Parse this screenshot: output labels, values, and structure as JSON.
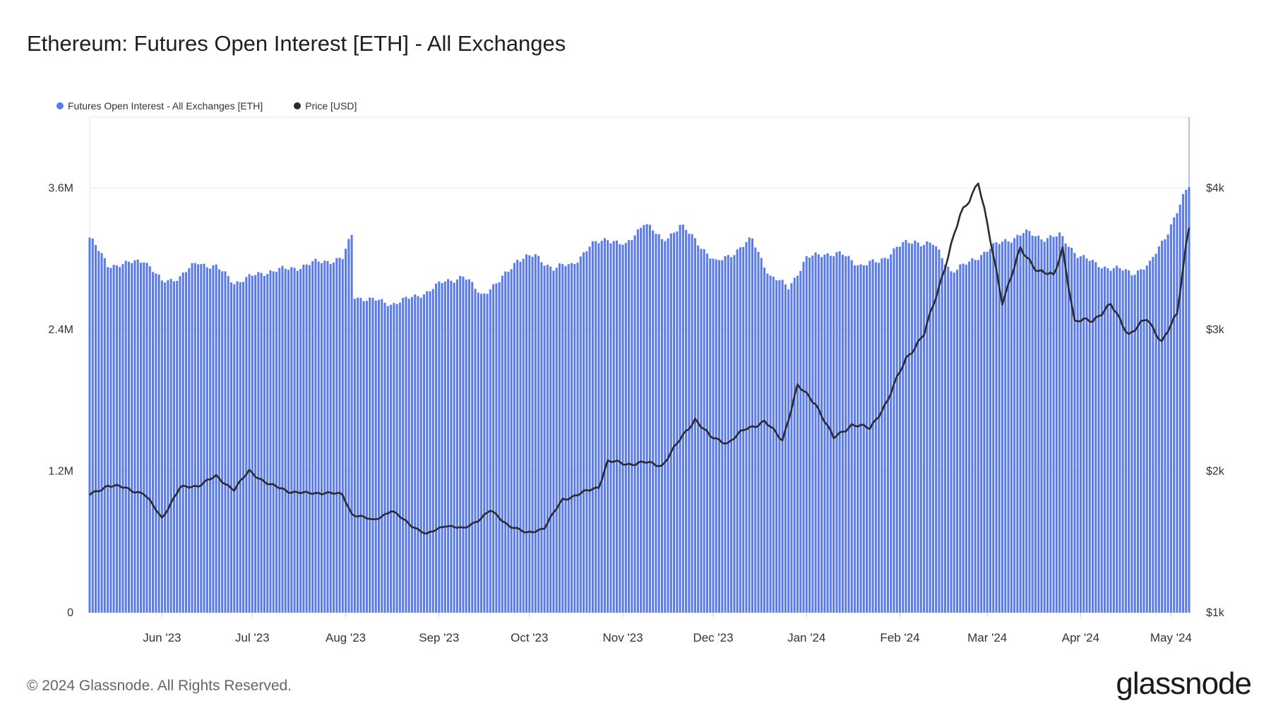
{
  "title": "Ethereum: Futures Open Interest [ETH] - All Exchanges",
  "legend": [
    {
      "label": "Futures Open Interest - All Exchanges [ETH]",
      "color": "#5b7be8"
    },
    {
      "label": "Price [USD]",
      "color": "#2b2b2b"
    }
  ],
  "footer": "© 2024 Glassnode. All Rights Reserved.",
  "logo": "glassnode",
  "chart_data": {
    "type": "bar",
    "x_range": [
      "2023-05-22",
      "2024-05-21"
    ],
    "x_ticks": [
      "Jun '23",
      "Jul '23",
      "Aug '23",
      "Sep '23",
      "Oct '23",
      "Nov '23",
      "Dec '23",
      "Jan '24",
      "Feb '24",
      "Mar '24",
      "Apr '24",
      "May '24"
    ],
    "y_left": {
      "ticks": [
        "0",
        "1.2M",
        "2.4M",
        "3.6M"
      ],
      "values": [
        0,
        1200000,
        2400000,
        3600000
      ],
      "range": [
        0,
        4200000
      ]
    },
    "y_right": {
      "ticks": [
        "$1k",
        "$2k",
        "$3k",
        "$4k"
      ],
      "values": [
        1000,
        2000,
        3000,
        4000
      ],
      "range": [
        1000,
        4500
      ]
    },
    "grid": true,
    "legend_position": "top-left",
    "series": [
      {
        "name": "Futures Open Interest - All Exchanges [ETH]",
        "type": "bar",
        "axis": "left",
        "color": "#5b7be8",
        "points": [
          [
            "2023-05-22",
            3180000
          ],
          [
            "2023-05-28",
            2950000
          ],
          [
            "2023-06-03",
            2950000
          ],
          [
            "2023-06-09",
            3000000
          ],
          [
            "2023-06-15",
            2800000
          ],
          [
            "2023-06-21",
            2850000
          ],
          [
            "2023-06-27",
            2970000
          ],
          [
            "2023-07-03",
            2930000
          ],
          [
            "2023-07-09",
            2800000
          ],
          [
            "2023-07-15",
            2850000
          ],
          [
            "2023-07-21",
            2900000
          ],
          [
            "2023-07-27",
            2910000
          ],
          [
            "2023-08-02",
            2950000
          ],
          [
            "2023-08-08",
            2980000
          ],
          [
            "2023-08-14",
            3000000
          ],
          [
            "2023-08-17",
            3200000
          ],
          [
            "2023-08-18",
            2680000
          ],
          [
            "2023-08-24",
            2650000
          ],
          [
            "2023-08-30",
            2620000
          ],
          [
            "2023-09-05",
            2660000
          ],
          [
            "2023-09-11",
            2720000
          ],
          [
            "2023-09-17",
            2810000
          ],
          [
            "2023-09-23",
            2850000
          ],
          [
            "2023-09-29",
            2700000
          ],
          [
            "2023-10-05",
            2800000
          ],
          [
            "2023-10-11",
            3000000
          ],
          [
            "2023-10-17",
            3020000
          ],
          [
            "2023-10-23",
            2920000
          ],
          [
            "2023-10-29",
            2950000
          ],
          [
            "2023-11-04",
            3100000
          ],
          [
            "2023-11-10",
            3180000
          ],
          [
            "2023-11-16",
            3100000
          ],
          [
            "2023-11-22",
            3320000
          ],
          [
            "2023-11-28",
            3150000
          ],
          [
            "2023-12-04",
            3280000
          ],
          [
            "2023-12-10",
            3140000
          ],
          [
            "2023-12-16",
            2960000
          ],
          [
            "2023-12-22",
            3060000
          ],
          [
            "2023-12-28",
            3160000
          ],
          [
            "2024-01-03",
            2850000
          ],
          [
            "2024-01-09",
            2760000
          ],
          [
            "2024-01-15",
            3000000
          ],
          [
            "2024-01-21",
            3050000
          ],
          [
            "2024-01-27",
            3030000
          ],
          [
            "2024-02-02",
            2950000
          ],
          [
            "2024-02-08",
            2970000
          ],
          [
            "2024-02-14",
            3100000
          ],
          [
            "2024-02-20",
            3150000
          ],
          [
            "2024-02-26",
            3120000
          ],
          [
            "2024-03-03",
            2900000
          ],
          [
            "2024-03-09",
            2960000
          ],
          [
            "2024-03-15",
            3080000
          ],
          [
            "2024-03-21",
            3150000
          ],
          [
            "2024-03-27",
            3220000
          ],
          [
            "2024-04-02",
            3180000
          ],
          [
            "2024-04-08",
            3190000
          ],
          [
            "2024-04-14",
            3040000
          ],
          [
            "2024-04-20",
            2950000
          ],
          [
            "2024-04-26",
            2920000
          ],
          [
            "2024-05-02",
            2880000
          ],
          [
            "2024-05-08",
            2950000
          ],
          [
            "2024-05-14",
            3240000
          ],
          [
            "2024-05-18",
            3450000
          ],
          [
            "2024-05-21",
            3620000
          ]
        ]
      },
      {
        "name": "Price [USD]",
        "type": "line",
        "axis": "right",
        "color": "#2b2b2b",
        "points": [
          [
            "2023-05-22",
            1830
          ],
          [
            "2023-05-28",
            1900
          ],
          [
            "2023-06-03",
            1880
          ],
          [
            "2023-06-09",
            1840
          ],
          [
            "2023-06-15",
            1670
          ],
          [
            "2023-06-21",
            1880
          ],
          [
            "2023-06-27",
            1900
          ],
          [
            "2023-07-03",
            1960
          ],
          [
            "2023-07-09",
            1870
          ],
          [
            "2023-07-14",
            2000
          ],
          [
            "2023-07-21",
            1900
          ],
          [
            "2023-07-27",
            1860
          ],
          [
            "2023-08-02",
            1840
          ],
          [
            "2023-08-08",
            1850
          ],
          [
            "2023-08-14",
            1830
          ],
          [
            "2023-08-17",
            1700
          ],
          [
            "2023-08-24",
            1650
          ],
          [
            "2023-08-30",
            1720
          ],
          [
            "2023-09-05",
            1630
          ],
          [
            "2023-09-11",
            1550
          ],
          [
            "2023-09-17",
            1620
          ],
          [
            "2023-09-23",
            1590
          ],
          [
            "2023-09-29",
            1670
          ],
          [
            "2023-10-02",
            1720
          ],
          [
            "2023-10-08",
            1620
          ],
          [
            "2023-10-14",
            1560
          ],
          [
            "2023-10-20",
            1600
          ],
          [
            "2023-10-26",
            1800
          ],
          [
            "2023-11-01",
            1840
          ],
          [
            "2023-11-07",
            1890
          ],
          [
            "2023-11-10",
            2070
          ],
          [
            "2023-11-16",
            2050
          ],
          [
            "2023-11-22",
            2060
          ],
          [
            "2023-11-28",
            2040
          ],
          [
            "2023-12-04",
            2220
          ],
          [
            "2023-12-09",
            2370
          ],
          [
            "2023-12-14",
            2240
          ],
          [
            "2023-12-20",
            2200
          ],
          [
            "2023-12-26",
            2300
          ],
          [
            "2024-01-01",
            2350
          ],
          [
            "2024-01-07",
            2220
          ],
          [
            "2024-01-12",
            2600
          ],
          [
            "2024-01-18",
            2480
          ],
          [
            "2024-01-24",
            2230
          ],
          [
            "2024-01-30",
            2330
          ],
          [
            "2024-02-05",
            2300
          ],
          [
            "2024-02-11",
            2500
          ],
          [
            "2024-02-17",
            2800
          ],
          [
            "2024-02-23",
            2960
          ],
          [
            "2024-02-29",
            3380
          ],
          [
            "2024-03-06",
            3800
          ],
          [
            "2024-03-12",
            4050
          ],
          [
            "2024-03-17",
            3520
          ],
          [
            "2024-03-20",
            3200
          ],
          [
            "2024-03-26",
            3560
          ],
          [
            "2024-04-01",
            3420
          ],
          [
            "2024-04-06",
            3370
          ],
          [
            "2024-04-09",
            3580
          ],
          [
            "2024-04-13",
            3050
          ],
          [
            "2024-04-19",
            3070
          ],
          [
            "2024-04-25",
            3170
          ],
          [
            "2024-05-01",
            2970
          ],
          [
            "2024-05-07",
            3070
          ],
          [
            "2024-05-12",
            2920
          ],
          [
            "2024-05-17",
            3100
          ],
          [
            "2024-05-20",
            3600
          ],
          [
            "2024-05-21",
            3740
          ]
        ]
      }
    ]
  }
}
